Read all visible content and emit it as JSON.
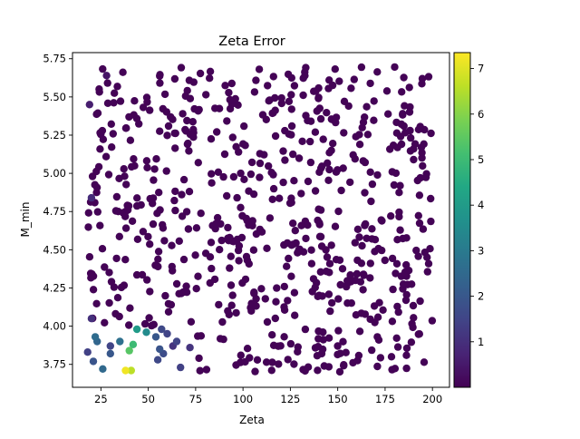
{
  "chart_data": {
    "type": "scatter",
    "title": "Zeta Error",
    "xlabel": "Zeta",
    "ylabel": "M_min",
    "xlim": [
      10,
      209
    ],
    "ylim": [
      3.6,
      5.79
    ],
    "x_ticks": [
      25,
      50,
      75,
      100,
      125,
      150,
      175,
      200
    ],
    "y_ticks": [
      3.75,
      4.0,
      4.25,
      4.5,
      4.75,
      5.0,
      5.25,
      5.5,
      5.75
    ],
    "x_tick_labels": [
      "25",
      "50",
      "75",
      "100",
      "125",
      "150",
      "175",
      "200"
    ],
    "y_tick_labels": [
      "3.75",
      "4.00",
      "4.25",
      "4.50",
      "4.75",
      "5.00",
      "5.25",
      "5.50",
      "5.75"
    ],
    "colorbar": {
      "colormap": "viridis",
      "range": [
        0.0,
        7.35
      ],
      "ticks": [
        1,
        2,
        3,
        4,
        5,
        6,
        7
      ],
      "tick_labels": [
        "1",
        "2",
        "3",
        "4",
        "5",
        "6",
        "7"
      ]
    },
    "highlighted_points": [
      {
        "x": 38,
        "y": 3.71,
        "value": 7.2
      },
      {
        "x": 41,
        "y": 3.71,
        "value": 6.6
      },
      {
        "x": 40,
        "y": 3.84,
        "value": 5.4
      },
      {
        "x": 42,
        "y": 3.88,
        "value": 5.0
      },
      {
        "x": 44,
        "y": 3.98,
        "value": 4.0
      },
      {
        "x": 49,
        "y": 3.96,
        "value": 3.5
      },
      {
        "x": 35,
        "y": 3.9,
        "value": 2.7
      },
      {
        "x": 22,
        "y": 3.93,
        "value": 2.6
      },
      {
        "x": 23,
        "y": 3.9,
        "value": 2.4
      },
      {
        "x": 26,
        "y": 3.72,
        "value": 2.5
      },
      {
        "x": 30,
        "y": 3.82,
        "value": 2.0
      },
      {
        "x": 21,
        "y": 3.77,
        "value": 1.9
      },
      {
        "x": 54,
        "y": 3.93,
        "value": 2.0
      },
      {
        "x": 56,
        "y": 3.85,
        "value": 1.9
      },
      {
        "x": 58,
        "y": 3.82,
        "value": 1.7
      },
      {
        "x": 57,
        "y": 3.98,
        "value": 1.6
      },
      {
        "x": 60,
        "y": 3.95,
        "value": 1.5
      },
      {
        "x": 65,
        "y": 3.9,
        "value": 1.5
      },
      {
        "x": 67,
        "y": 3.73,
        "value": 1.4
      },
      {
        "x": 55,
        "y": 3.78,
        "value": 1.6
      },
      {
        "x": 18,
        "y": 3.83,
        "value": 1.4
      },
      {
        "x": 30,
        "y": 3.87,
        "value": 1.5
      },
      {
        "x": 72,
        "y": 3.86,
        "value": 1.1
      },
      {
        "x": 63,
        "y": 3.87,
        "value": 1.1
      },
      {
        "x": 20,
        "y": 4.05,
        "value": 1.0
      },
      {
        "x": 20,
        "y": 4.84,
        "value": 0.9
      },
      {
        "x": 19,
        "y": 5.45,
        "value": 0.6
      },
      {
        "x": 28,
        "y": 5.64,
        "value": 0.4
      }
    ],
    "background_value": 0.05,
    "background_count": 720,
    "background_x_range": [
      18,
      200
    ],
    "background_y_range": [
      3.7,
      5.7
    ]
  }
}
